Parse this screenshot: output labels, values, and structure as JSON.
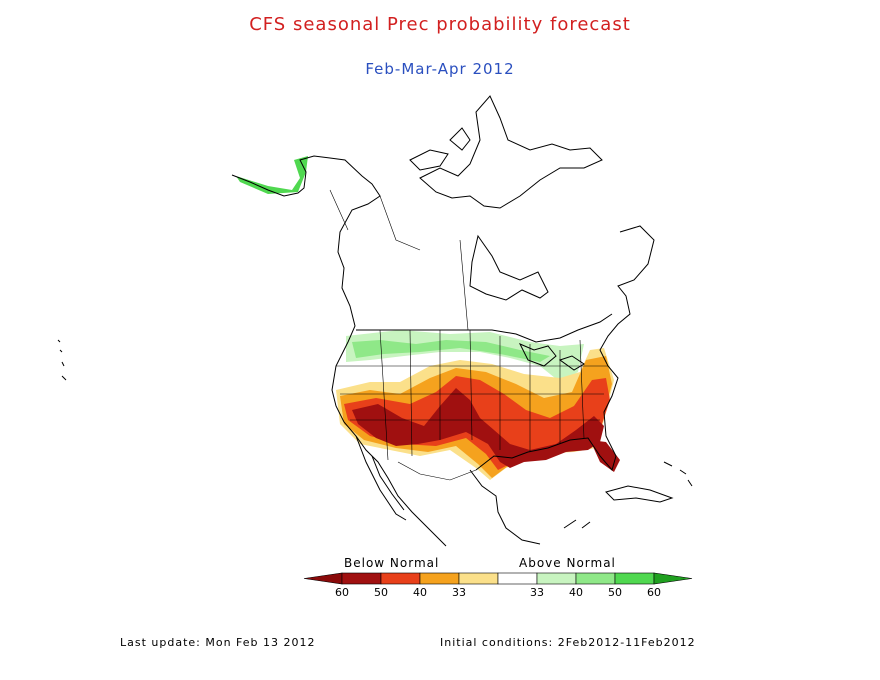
{
  "title": "CFS seasonal Prec probability forecast",
  "subtitle": "Feb-Mar-Apr 2012",
  "colors": {
    "title": "#d22020",
    "subtitle": "#2a4fbf"
  },
  "legend": {
    "below_label": "Below Normal",
    "above_label": "Above Normal",
    "bins": [
      {
        "label": "60",
        "color": "#a01010"
      },
      {
        "label": "50",
        "color": "#e8401a"
      },
      {
        "label": "40",
        "color": "#f5a21e"
      },
      {
        "label": "33",
        "color": "#fbe08a"
      },
      {
        "label": "33",
        "color": "#ffffff"
      },
      {
        "label": "40",
        "color": "#c8f4c0"
      },
      {
        "label": "50",
        "color": "#8fe888"
      },
      {
        "label": "60",
        "color": "#50d850"
      }
    ],
    "end_below_color": "#8a0a0a",
    "end_above_color": "#20a020"
  },
  "footer": {
    "last_update": "Last update: Mon Feb 13 2012",
    "initial_conditions": "Initial conditions: 2Feb2012-11Feb2012"
  }
}
